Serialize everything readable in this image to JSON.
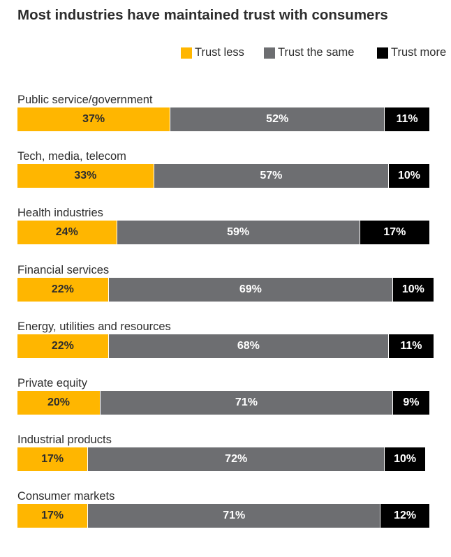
{
  "chart_data": {
    "type": "bar",
    "orientation": "horizontal-stacked",
    "title": "Most industries have maintained trust with consumers",
    "legend_position": "top-right",
    "grid": false,
    "categories": [
      "Public service/government",
      "Tech, media, telecom",
      "Health industries",
      "Financial services",
      "Energy, utilities and resources",
      "Private equity",
      "Industrial products",
      "Consumer markets"
    ],
    "series": [
      {
        "name": "Trust less",
        "color": "#FFB600",
        "values": [
          37,
          33,
          24,
          22,
          22,
          20,
          17,
          17
        ]
      },
      {
        "name": "Trust the same",
        "color": "#6D6E71",
        "values": [
          52,
          57,
          59,
          69,
          68,
          71,
          72,
          71
        ]
      },
      {
        "name": "Trust more",
        "color": "#000000",
        "values": [
          11,
          10,
          17,
          10,
          11,
          9,
          10,
          12
        ]
      }
    ],
    "value_suffix": "%"
  }
}
